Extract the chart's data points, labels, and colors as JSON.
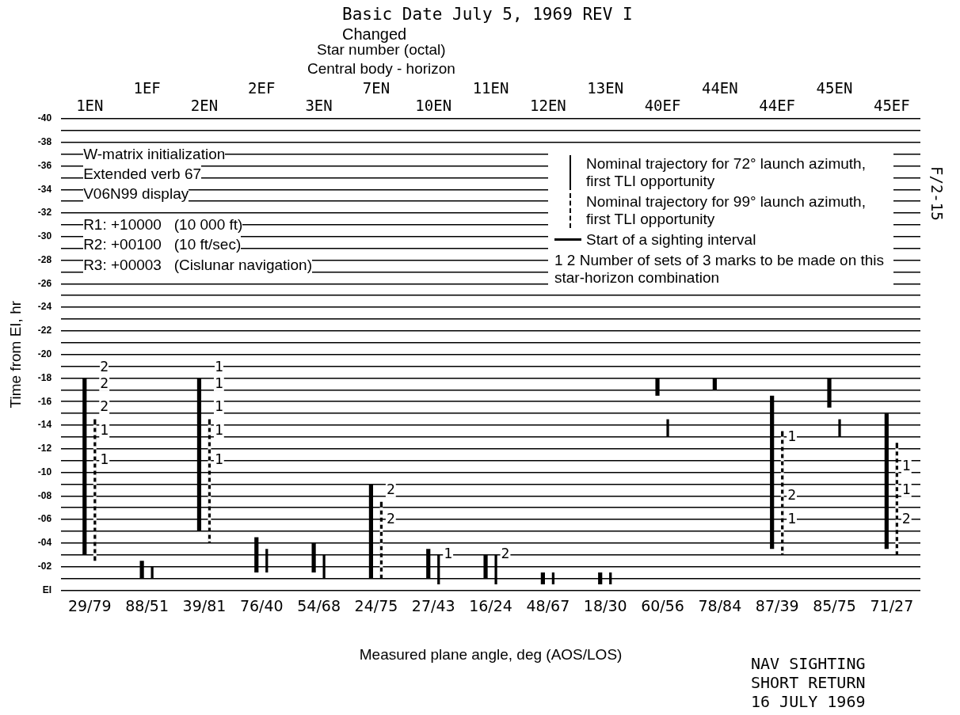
{
  "chart_data": {
    "type": "bar",
    "xlabel": "Measured plane angle, deg (AOS/LOS)",
    "ylabel": "Time from EI, hr",
    "categories": [
      "29/79",
      "88/51",
      "39/81",
      "76/40",
      "54/68",
      "24/75",
      "27/43",
      "16/24",
      "48/67",
      "18/30",
      "60/56",
      "78/84",
      "87/39",
      "85/75",
      "71/27"
    ],
    "series": [
      {
        "name": "Nominal trajectory for 72° launch azimuth, first TLI opportunity",
        "color": "#000000",
        "line_style": "solid",
        "base": [
          -18,
          -2.5,
          -18,
          -4.5,
          -4,
          -9,
          -3.5,
          -3,
          -1.5,
          -1.5,
          -18,
          -18,
          -16.5,
          -18,
          -15
        ],
        "values": [
          15,
          1.5,
          13,
          3,
          2.5,
          8,
          2.5,
          2,
          1,
          1,
          1.5,
          1,
          13,
          2.5,
          11.5
        ]
      },
      {
        "name": "Nominal trajectory for 99° launch azimuth, first TLI opportunity",
        "color": "#000000",
        "line_style": "dashed",
        "base": [
          -14.5,
          -2,
          -14.5,
          -3.5,
          -3,
          -7.5,
          -3,
          -3,
          -1.5,
          -1.5,
          -14.5,
          null,
          -13.5,
          -14.5,
          -12.5
        ],
        "values": [
          12,
          1,
          10.5,
          2,
          2,
          6.5,
          2.5,
          2.5,
          1,
          1,
          1.5,
          null,
          10.5,
          1.5,
          9.5
        ]
      }
    ],
    "ylim": [
      0,
      -40
    ],
    "yticks": [
      -40,
      {
        "value": -39,
        "label": null
      },
      -38,
      {
        "value": -37,
        "label": null
      },
      -36,
      {
        "value": -35,
        "label": null
      },
      -34,
      {
        "value": -33,
        "label": null
      },
      -32,
      {
        "value": -31,
        "label": null
      },
      -30,
      {
        "value": -29,
        "label": null
      },
      -28,
      {
        "value": -27,
        "label": null
      },
      -26,
      {
        "value": -25,
        "label": null
      },
      -24,
      {
        "value": -23,
        "label": null
      },
      -22,
      {
        "value": -21,
        "label": null
      },
      -20,
      {
        "value": -19,
        "label": null
      },
      -18,
      {
        "value": -17,
        "label": null
      },
      -16,
      {
        "value": -15,
        "label": null
      },
      -14,
      {
        "value": -13,
        "label": null
      },
      -12,
      {
        "value": -11,
        "label": null
      },
      -10,
      {
        "value": -9,
        "label": null
      },
      {
        "value": -8,
        "label": "-08"
      },
      {
        "value": -7,
        "label": null
      },
      {
        "value": -6,
        "label": "-06"
      },
      {
        "value": -5,
        "label": null
      },
      {
        "value": -4,
        "label": "-04"
      },
      {
        "value": -3,
        "label": null
      },
      {
        "value": -2,
        "label": "-02"
      },
      {
        "value": -1,
        "label": null
      },
      {
        "value": 0,
        "label": "EI"
      }
    ],
    "grid": "y",
    "legend": "top right",
    "annotations": [
      "Basic Date July 5, 1969 REV I",
      "Changed",
      "Star number (octal)",
      "Central body - horizon",
      "W-matrix initialization",
      "Extended verb 67",
      "V06N99 display",
      "R1: +10000   (10 000 ft)",
      "R2: +00100   (10 ft/sec)",
      "R3: +00003   (Cislunar navigation)",
      "Start of a sighting interval",
      "1  2 Number of sets of 3 marks to be made on this star-horizon combination",
      "F/2-15",
      "NAV SIGHTING SHORT RETURN 16 JULY 1969",
      "1EN",
      "1EF",
      "2EN",
      "2EF",
      "3EN",
      "7EN",
      "10EN",
      "11EN",
      "12EN",
      "13EN",
      "40EF",
      "44EN",
      "44EF",
      "45EN",
      "45EF",
      "2",
      "1",
      {
        "text": "2",
        "x": "29/79",
        "y": -17.5
      },
      {
        "text": "2",
        "x": "29/79",
        "y": -15.5
      },
      {
        "text": "1",
        "x": "29/79",
        "y": -13.5
      },
      {
        "text": "1",
        "x": "29/79",
        "y": -11
      },
      {
        "text": "1",
        "x": "39/81",
        "y": -17.5
      },
      {
        "text": "1",
        "x": "39/81",
        "y": -15.5
      },
      {
        "text": "1",
        "x": "39/81",
        "y": -13.5
      },
      {
        "text": "1",
        "x": "39/81",
        "y": -11
      },
      {
        "text": "2",
        "x": "24/75",
        "y": -8.5
      },
      {
        "text": "2",
        "x": "24/75",
        "y": -6
      },
      {
        "text": "1",
        "x": "27/43",
        "y": -3
      },
      {
        "text": "2",
        "x": "16/24",
        "y": -3
      },
      {
        "text": "1",
        "x": "87/39",
        "y": -13
      },
      {
        "text": "2",
        "x": "87/39",
        "y": -8
      },
      {
        "text": "1",
        "x": "87/39",
        "y": -6
      },
      {
        "text": "1",
        "x": "71/27",
        "y": -10.5
      },
      {
        "text": "1",
        "x": "71/27",
        "y": -8.5
      },
      {
        "text": "2",
        "x": "71/27",
        "y": -6
      }
    ]
  }
}
